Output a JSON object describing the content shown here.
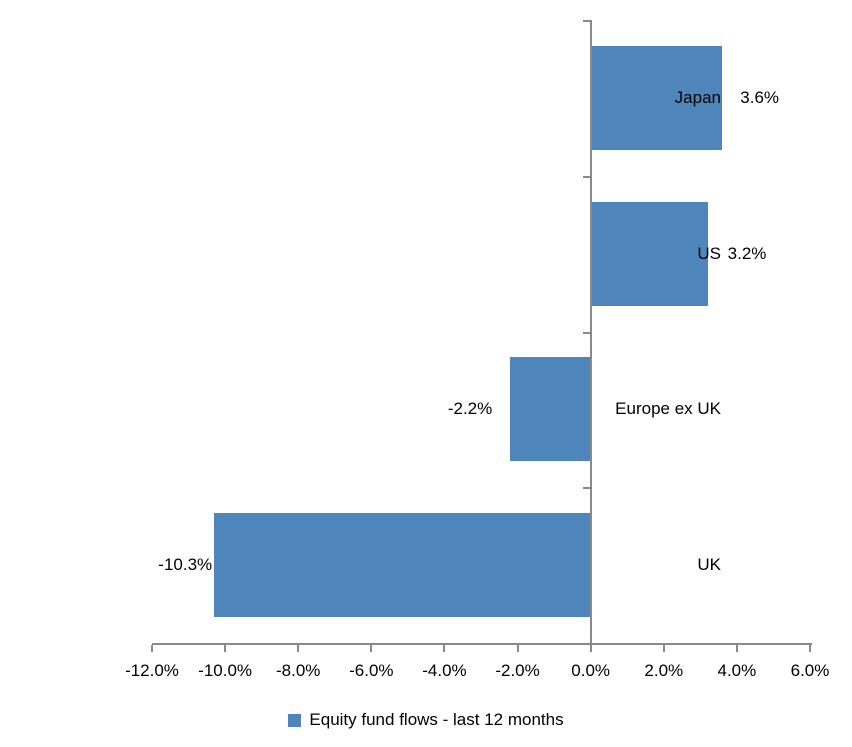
{
  "chart_data": {
    "type": "bar",
    "orientation": "horizontal",
    "categories": [
      "Japan",
      "US",
      "Europe ex UK",
      "UK"
    ],
    "values": [
      3.6,
      3.2,
      -2.2,
      -10.3
    ],
    "value_labels": [
      "3.6%",
      "3.2%",
      "-2.2%",
      "-10.3%"
    ],
    "series_name": "Equity fund flows - last 12 months",
    "legend": "Equity fund flows - last 12 months",
    "legend_position": "bottom",
    "x_tick_values": [
      -12,
      -10,
      -8,
      -6,
      -4,
      -2,
      0,
      2,
      4,
      6
    ],
    "x_tick_labels": [
      "-12.0%",
      "-10.0%",
      "-8.0%",
      "-6.0%",
      "-4.0%",
      "-2.0%",
      "0.0%",
      "2.0%",
      "4.0%",
      "6.0%"
    ],
    "xlim": [
      -12,
      6
    ],
    "grid": false,
    "title": "",
    "xlabel": "",
    "ylabel": "",
    "bar_color": "#4E86BC",
    "axis_color": "#898989",
    "text_color": "#000000",
    "background_color": "#FFFFFF"
  }
}
